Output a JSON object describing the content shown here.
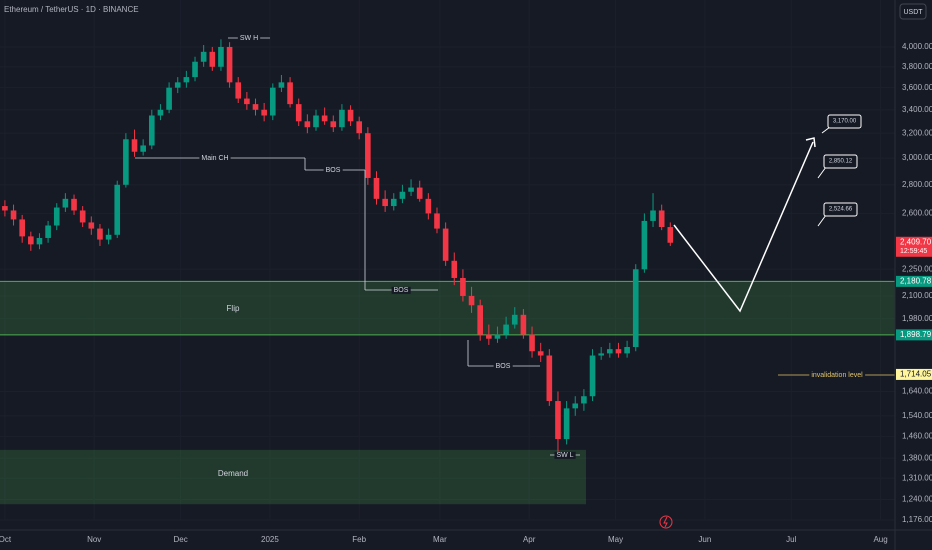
{
  "chart_data": {
    "type": "candlestick",
    "title": "Ethereum / TetherUS · 1D · BINANCE",
    "currency": "USDT",
    "log_scale": true,
    "up_color": "#089981",
    "down_color": "#f23645",
    "x": [
      0,
      3,
      6,
      9,
      12,
      15,
      18,
      21,
      24,
      27,
      30,
      33,
      36,
      39,
      42,
      45,
      48,
      51,
      54,
      57,
      60,
      63,
      66,
      69,
      72,
      75,
      78,
      81,
      84,
      87,
      90,
      93,
      96,
      99,
      102,
      105,
      108,
      111,
      114,
      117,
      120,
      123,
      126,
      129,
      132,
      135,
      138,
      141,
      144,
      147,
      150,
      153,
      156,
      159,
      162,
      165,
      168,
      171,
      174,
      177,
      180,
      183,
      186,
      189,
      192,
      195,
      198,
      201,
      204,
      207,
      210,
      213,
      216,
      219,
      222,
      225,
      228,
      231
    ],
    "open": [
      2650,
      2620,
      2560,
      2450,
      2400,
      2440,
      2520,
      2640,
      2700,
      2620,
      2540,
      2500,
      2430,
      2460,
      2800,
      3150,
      3050,
      3100,
      3350,
      3400,
      3600,
      3650,
      3700,
      3850,
      3950,
      3800,
      4000,
      3650,
      3500,
      3450,
      3400,
      3350,
      3600,
      3650,
      3450,
      3300,
      3250,
      3350,
      3300,
      3250,
      3400,
      3300,
      3200,
      2850,
      2700,
      2650,
      2700,
      2750,
      2780,
      2700,
      2600,
      2500,
      2300,
      2200,
      2100,
      2050,
      1900,
      1880,
      1900,
      1950,
      2000,
      1900,
      1820,
      1800,
      1600,
      1450,
      1570,
      1590,
      1620,
      1800,
      1810,
      1830,
      1810,
      1840,
      2250,
      2550,
      2620,
      2510
    ],
    "high": [
      2690,
      2660,
      2590,
      2480,
      2470,
      2550,
      2670,
      2740,
      2730,
      2650,
      2580,
      2530,
      2500,
      2830,
      3200,
      3230,
      3150,
      3400,
      3450,
      3650,
      3700,
      3760,
      3900,
      4020,
      4000,
      4080,
      4050,
      3700,
      3560,
      3500,
      3460,
      3640,
      3720,
      3700,
      3500,
      3360,
      3400,
      3420,
      3350,
      3450,
      3440,
      3340,
      3250,
      2900,
      2760,
      2740,
      2800,
      2840,
      2830,
      2740,
      2640,
      2540,
      2350,
      2250,
      2150,
      2080,
      1950,
      1940,
      1990,
      2040,
      2030,
      1940,
      1860,
      1830,
      1640,
      1600,
      1620,
      1650,
      1830,
      1840,
      1860,
      1860,
      1870,
      2280,
      2600,
      2740,
      2660,
      2540
    ],
    "low": [
      2580,
      2520,
      2410,
      2360,
      2370,
      2410,
      2490,
      2610,
      2590,
      2510,
      2460,
      2390,
      2400,
      2440,
      2780,
      3010,
      3020,
      3070,
      3310,
      3370,
      3550,
      3600,
      3660,
      3800,
      3760,
      3760,
      3600,
      3460,
      3400,
      3350,
      3300,
      3310,
      3560,
      3420,
      3260,
      3200,
      3220,
      3270,
      3210,
      3220,
      3260,
      3150,
      2800,
      2660,
      2610,
      2620,
      2670,
      2720,
      2680,
      2560,
      2470,
      2270,
      2160,
      2070,
      2010,
      1870,
      1850,
      1860,
      1880,
      1930,
      1880,
      1790,
      1770,
      1580,
      1400,
      1430,
      1540,
      1560,
      1600,
      1780,
      1790,
      1790,
      1790,
      1820,
      2230,
      2510,
      2490,
      2390
    ],
    "close": [
      2620,
      2560,
      2450,
      2400,
      2440,
      2520,
      2640,
      2700,
      2620,
      2540,
      2500,
      2430,
      2460,
      2800,
      3150,
      3050,
      3100,
      3350,
      3400,
      3600,
      3650,
      3700,
      3850,
      3950,
      3800,
      4000,
      3650,
      3500,
      3450,
      3400,
      3350,
      3600,
      3650,
      3450,
      3300,
      3250,
      3350,
      3300,
      3250,
      3400,
      3300,
      3200,
      2850,
      2700,
      2650,
      2700,
      2750,
      2780,
      2700,
      2600,
      2500,
      2300,
      2200,
      2100,
      2050,
      1900,
      1880,
      1900,
      1950,
      2000,
      1900,
      1820,
      1800,
      1600,
      1450,
      1570,
      1590,
      1620,
      1800,
      1810,
      1830,
      1810,
      1840,
      2250,
      2550,
      2620,
      2510,
      2410
    ],
    "xlim": [
      -1.7,
      309
    ],
    "xticks": [
      {
        "value": 0,
        "label": "Oct"
      },
      {
        "value": 31,
        "label": "Nov"
      },
      {
        "value": 61,
        "label": "Dec"
      },
      {
        "value": 92,
        "label": "2025"
      },
      {
        "value": 123,
        "label": "Feb"
      },
      {
        "value": 151,
        "label": "Mar"
      },
      {
        "value": 182,
        "label": "Apr"
      },
      {
        "value": 212,
        "label": "May"
      },
      {
        "value": 243,
        "label": "Jun"
      },
      {
        "value": 273,
        "label": "Jul"
      },
      {
        "value": 304,
        "label": "Aug"
      }
    ],
    "ylim": [
      1176,
      4517
    ],
    "yticks": [
      {
        "value": 4000,
        "label": "4,000.00"
      },
      {
        "value": 3800,
        "label": "3,800.00"
      },
      {
        "value": 3600,
        "label": "3,600.00"
      },
      {
        "value": 3400,
        "label": "3,400.00"
      },
      {
        "value": 3200,
        "label": "3,200.00"
      },
      {
        "value": 3000,
        "label": "3,000.00"
      },
      {
        "value": 2800,
        "label": "2,800.00"
      },
      {
        "value": 2600,
        "label": "2,600.00"
      },
      {
        "value": 2250,
        "label": "2,250.00"
      },
      {
        "value": 2100,
        "label": "2,100.00"
      },
      {
        "value": 1980,
        "label": "1,980.00"
      },
      {
        "value": 1640,
        "label": "1,640.00"
      },
      {
        "value": 1540,
        "label": "1,540.00"
      },
      {
        "value": 1460,
        "label": "1,460.00"
      },
      {
        "value": 1380,
        "label": "1,380.00"
      },
      {
        "value": 1310,
        "label": "1,310.00"
      },
      {
        "value": 1240,
        "label": "1,240.00"
      },
      {
        "value": 1176,
        "label": "1,176.00"
      }
    ],
    "price_tags": [
      {
        "value": 2409.7,
        "label": "2,409.70",
        "sub": "12:59:45",
        "color": "#f23645"
      },
      {
        "value": 2180.78,
        "label": "2,180.78",
        "color": "#089981"
      },
      {
        "value": 1898.79,
        "label": "1,898.79",
        "color": "#089981"
      },
      {
        "value": 1714.05,
        "label": "1,714.05",
        "color": "#fff59d"
      }
    ],
    "zones": [
      {
        "label": "Flip",
        "top": 2180.78,
        "bottom": 1898.79
      },
      {
        "label": "Demand",
        "top": 1410,
        "bottom": 1225
      }
    ],
    "annotations": [
      "SW H",
      "Main CH",
      "BOS",
      "BOS",
      "BOS",
      "SW L",
      "invalidation level"
    ],
    "targets": [
      "3,170.00",
      "2,850.12",
      "2,524.66"
    ]
  }
}
